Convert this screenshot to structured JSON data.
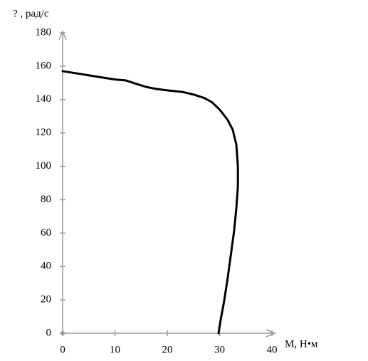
{
  "chart_data": {
    "type": "line",
    "y_label": "? , рад/с",
    "x_label": "М, Н•м",
    "x": [
      0,
      3,
      6,
      10,
      12,
      14,
      16,
      18,
      20,
      23,
      25,
      27,
      28.5,
      30,
      31.5,
      32.5,
      33.2,
      33.5,
      33.5,
      33.2,
      32.8,
      32.2,
      31.5,
      30.8,
      30.2,
      29.8
    ],
    "series": [
      {
        "color": "#000000",
        "values": [
          157,
          155.5,
          154,
          152,
          151.5,
          149.5,
          147.5,
          146.3,
          145.5,
          144.5,
          143,
          141,
          138.5,
          134,
          128,
          122,
          113,
          100,
          88,
          75,
          62,
          48,
          32,
          18,
          8,
          0
        ]
      }
    ],
    "xlim": [
      0,
      40
    ],
    "ylim": [
      0,
      180
    ],
    "xticks": [
      0,
      10,
      20,
      30,
      40
    ],
    "yticks": [
      0,
      20,
      40,
      60,
      80,
      100,
      120,
      140,
      160,
      180
    ],
    "axis_color": "#999999"
  }
}
